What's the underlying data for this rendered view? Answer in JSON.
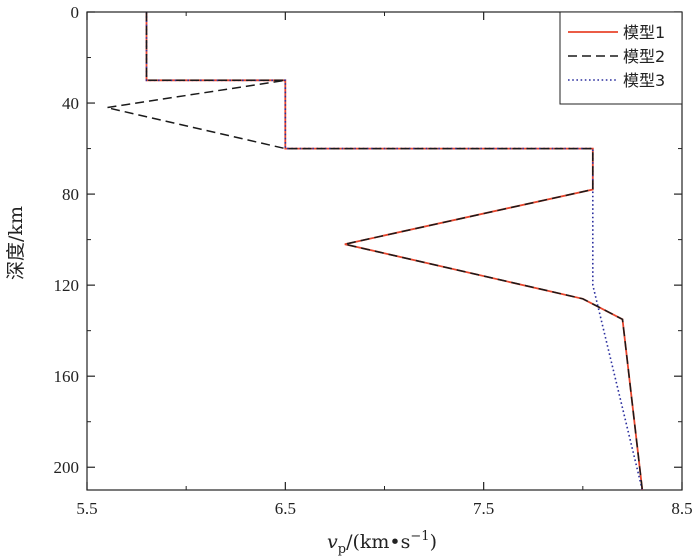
{
  "chart_data": {
    "type": "line",
    "xlabel": {
      "main": "v",
      "sub": "p",
      "unit": "/(km•s",
      "sup": "−1",
      "close": ")"
    },
    "ylabel": "深度/km",
    "xlim": [
      5.5,
      8.5
    ],
    "ylim": [
      0,
      210
    ],
    "y_inverted": true,
    "x_ticks": [
      5.5,
      6.5,
      7.5,
      8.5
    ],
    "x_tick_labels": [
      "5.5",
      "6.5",
      "7.5",
      "8.5"
    ],
    "x_minor_ticks": [
      6.0,
      7.0,
      8.0
    ],
    "y_ticks": [
      0,
      40,
      80,
      120,
      160,
      200
    ],
    "y_tick_labels": [
      "0",
      "40",
      "80",
      "120",
      "160",
      "200"
    ],
    "y_minor_ticks": [
      20,
      60,
      100,
      140,
      180
    ],
    "grid": false,
    "legend_position": "top-right",
    "series": [
      {
        "name": "模型1",
        "color": "#e8452c",
        "style": "solid",
        "points": [
          [
            5.8,
            0
          ],
          [
            5.8,
            30
          ],
          [
            6.5,
            30
          ],
          [
            6.5,
            60
          ],
          [
            8.05,
            60
          ],
          [
            8.05,
            78
          ],
          [
            6.8,
            102
          ],
          [
            8.0,
            126
          ],
          [
            8.2,
            135
          ],
          [
            8.3,
            210
          ]
        ]
      },
      {
        "name": "模型2",
        "color": "#1a1a1a",
        "style": "dashed",
        "points": [
          [
            5.8,
            0
          ],
          [
            5.8,
            30
          ],
          [
            6.5,
            30
          ],
          [
            5.6,
            42
          ],
          [
            6.5,
            60
          ],
          [
            8.05,
            60
          ],
          [
            8.05,
            78
          ],
          [
            6.8,
            102
          ],
          [
            8.0,
            126
          ],
          [
            8.2,
            135
          ],
          [
            8.3,
            210
          ]
        ]
      },
      {
        "name": "模型3",
        "color": "#2b2f9e",
        "style": "dotted",
        "points": [
          [
            5.8,
            0
          ],
          [
            5.8,
            30
          ],
          [
            6.5,
            30
          ],
          [
            6.5,
            60
          ],
          [
            8.05,
            60
          ],
          [
            8.05,
            78
          ],
          [
            8.05,
            120
          ],
          [
            8.3,
            210
          ]
        ]
      }
    ]
  }
}
